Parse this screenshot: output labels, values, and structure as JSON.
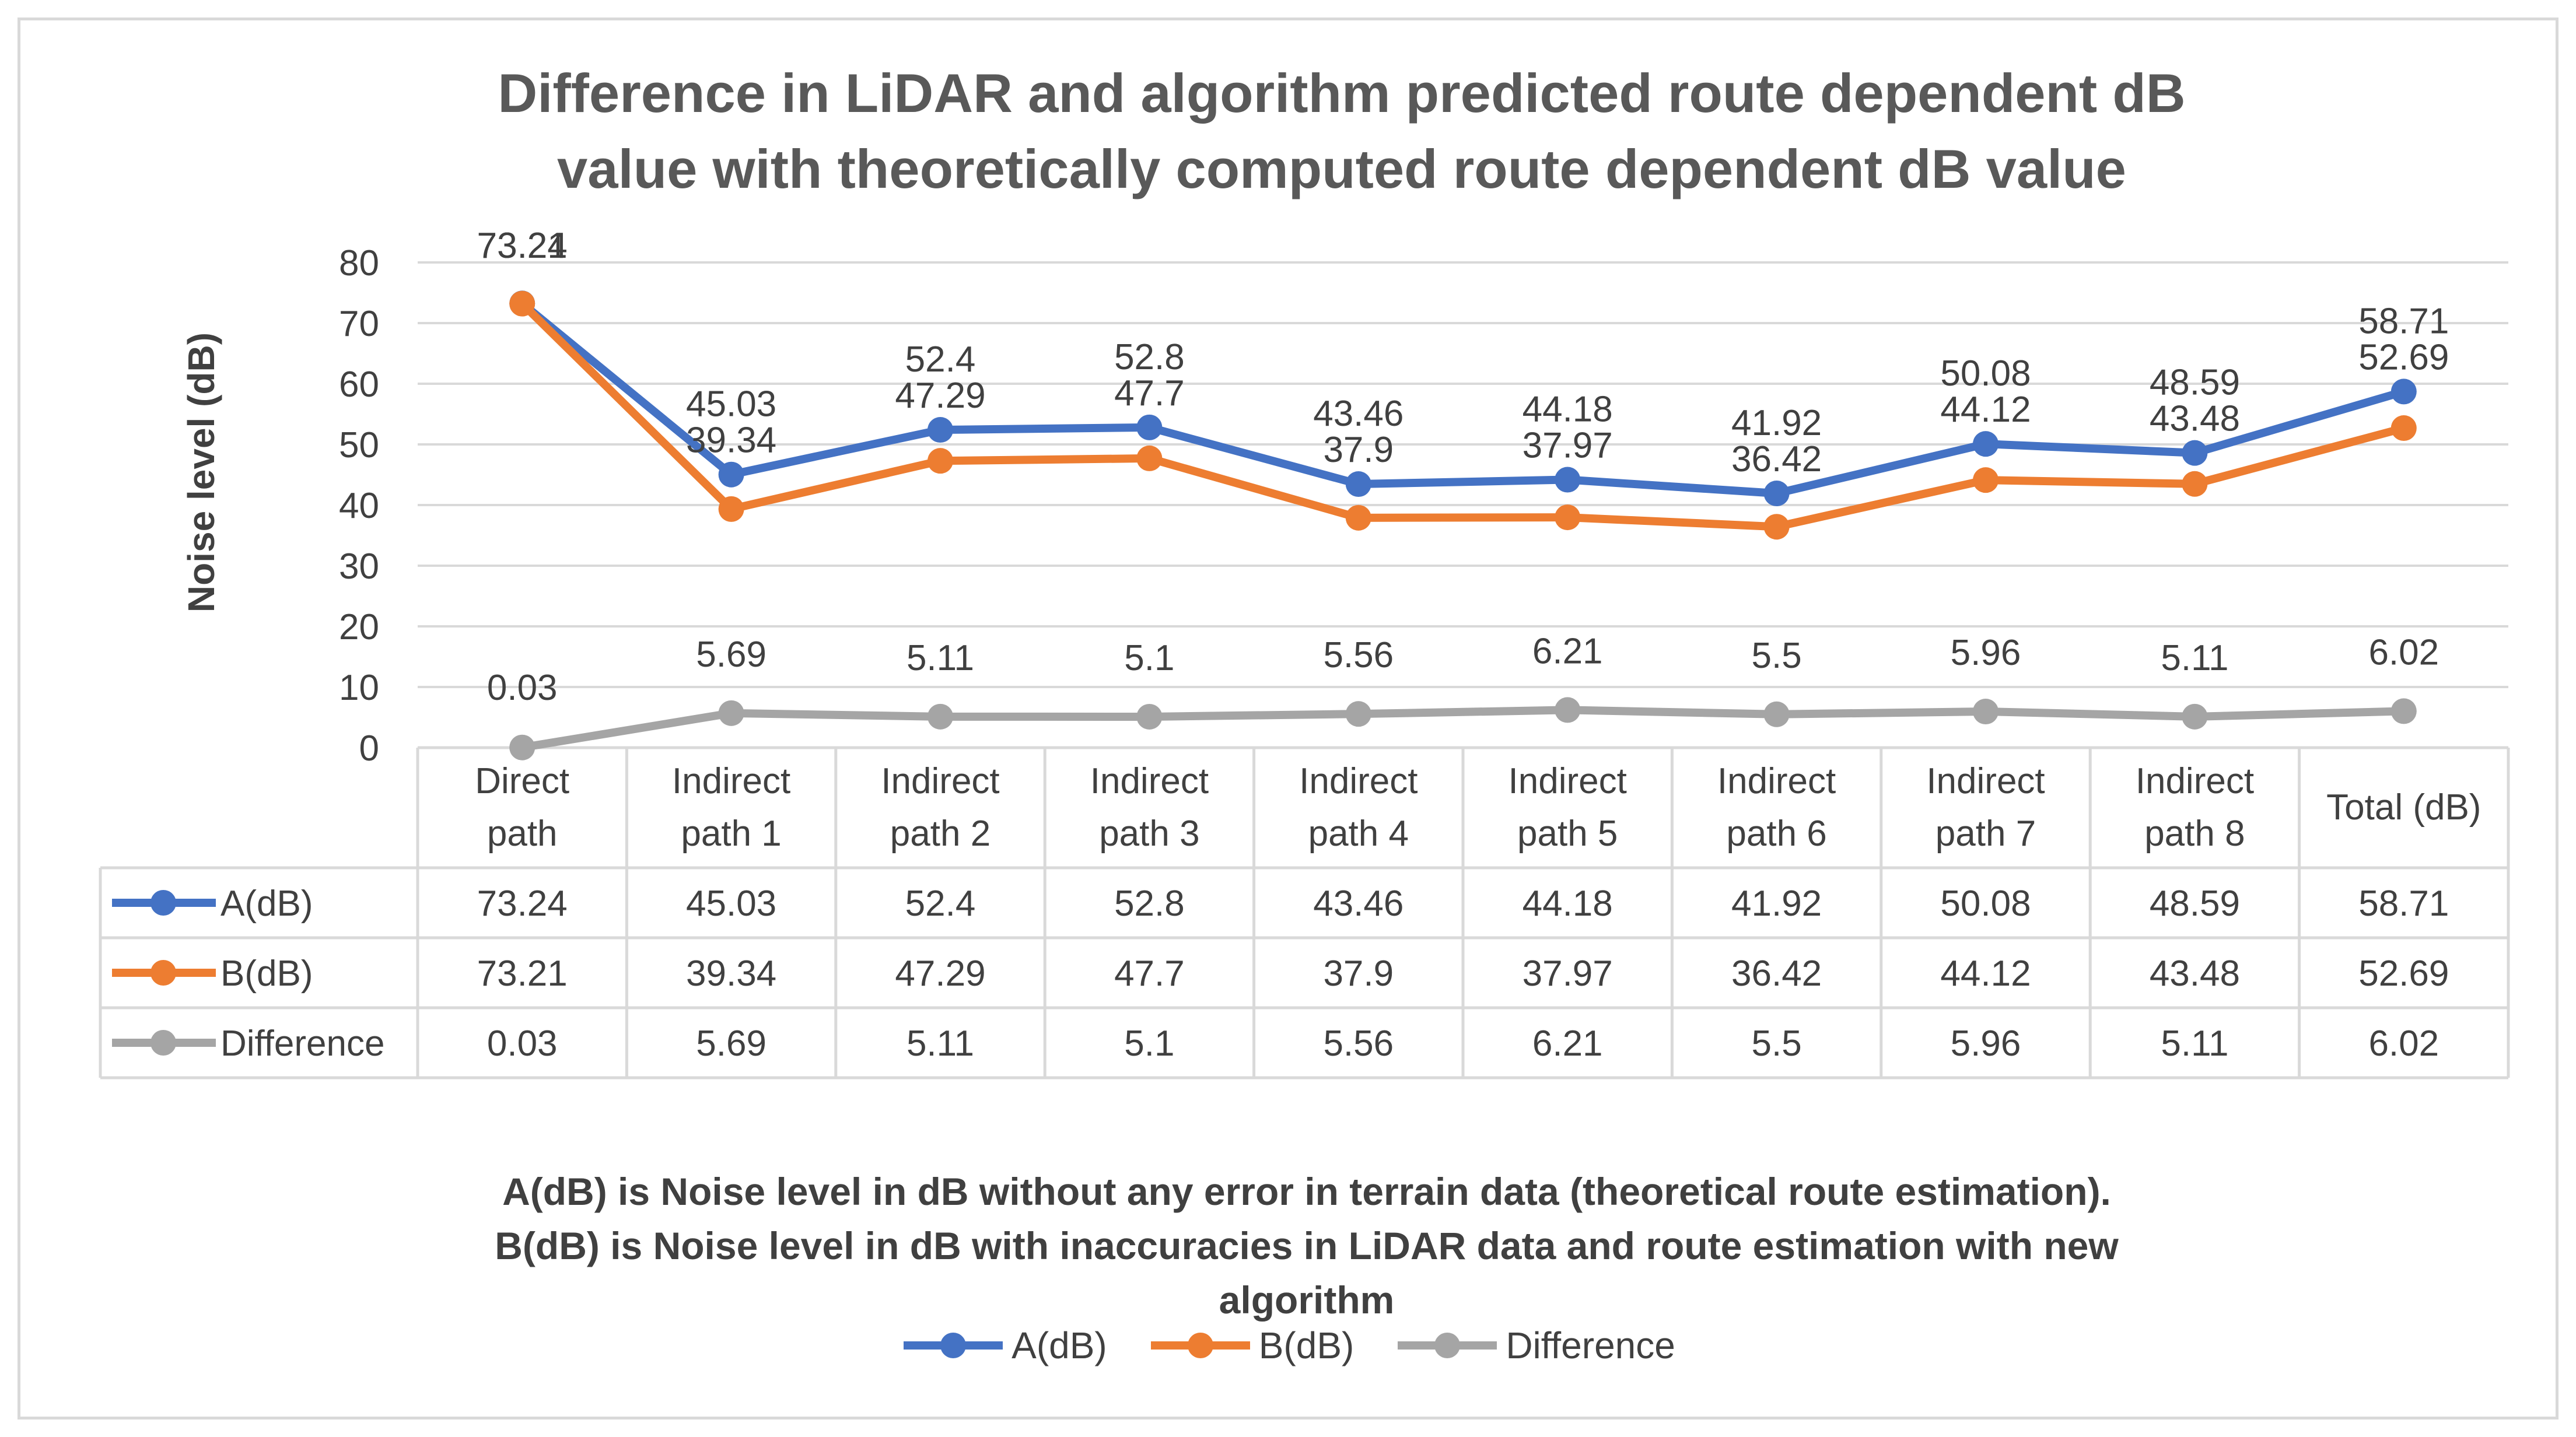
{
  "chart_data": {
    "type": "line",
    "title_line1": "Difference in  LiDAR and algorithm predicted route dependent dB",
    "title_line2": "value with theoretically computed route dependent dB value",
    "ylabel": "Noise level (dB)",
    "ylim": [
      0,
      80
    ],
    "yticks": [
      0,
      10,
      20,
      30,
      40,
      50,
      60,
      70,
      80
    ],
    "categories": [
      [
        "Direct",
        "path"
      ],
      [
        "Indirect",
        "path 1"
      ],
      [
        "Indirect",
        "path 2"
      ],
      [
        "Indirect",
        "path 3"
      ],
      [
        "Indirect",
        "path 4"
      ],
      [
        "Indirect",
        "path 5"
      ],
      [
        "Indirect",
        "path 6"
      ],
      [
        "Indirect",
        "path 7"
      ],
      [
        "Indirect",
        "path 8"
      ],
      [
        "Total (dB)"
      ]
    ],
    "series": [
      {
        "name": "A(dB)",
        "color": "#4472C4",
        "values": [
          73.24,
          45.03,
          52.4,
          52.8,
          43.46,
          44.18,
          41.92,
          50.08,
          48.59,
          58.71
        ]
      },
      {
        "name": "B(dB)",
        "color": "#ED7D31",
        "values": [
          73.21,
          39.34,
          47.29,
          47.7,
          37.9,
          37.97,
          36.42,
          44.12,
          43.48,
          52.69
        ]
      },
      {
        "name": "Difference",
        "color": "#A5A5A5",
        "values": [
          0.03,
          5.69,
          5.11,
          5.1,
          5.56,
          6.21,
          5.5,
          5.96,
          5.11,
          6.02
        ]
      }
    ],
    "grid": true,
    "legend_position": "bottom",
    "data_table": true
  },
  "notes": {
    "line1": "A(dB) is  Noise level in dB without any error in terrain data (theoretical route estimation).",
    "line2": "B(dB) is Noise level in dB with inaccuracies in LiDAR data and route estimation with new",
    "line3": "algorithm"
  },
  "legend": {
    "a": "A(dB)",
    "b": "B(dB)",
    "diff": "Difference"
  }
}
